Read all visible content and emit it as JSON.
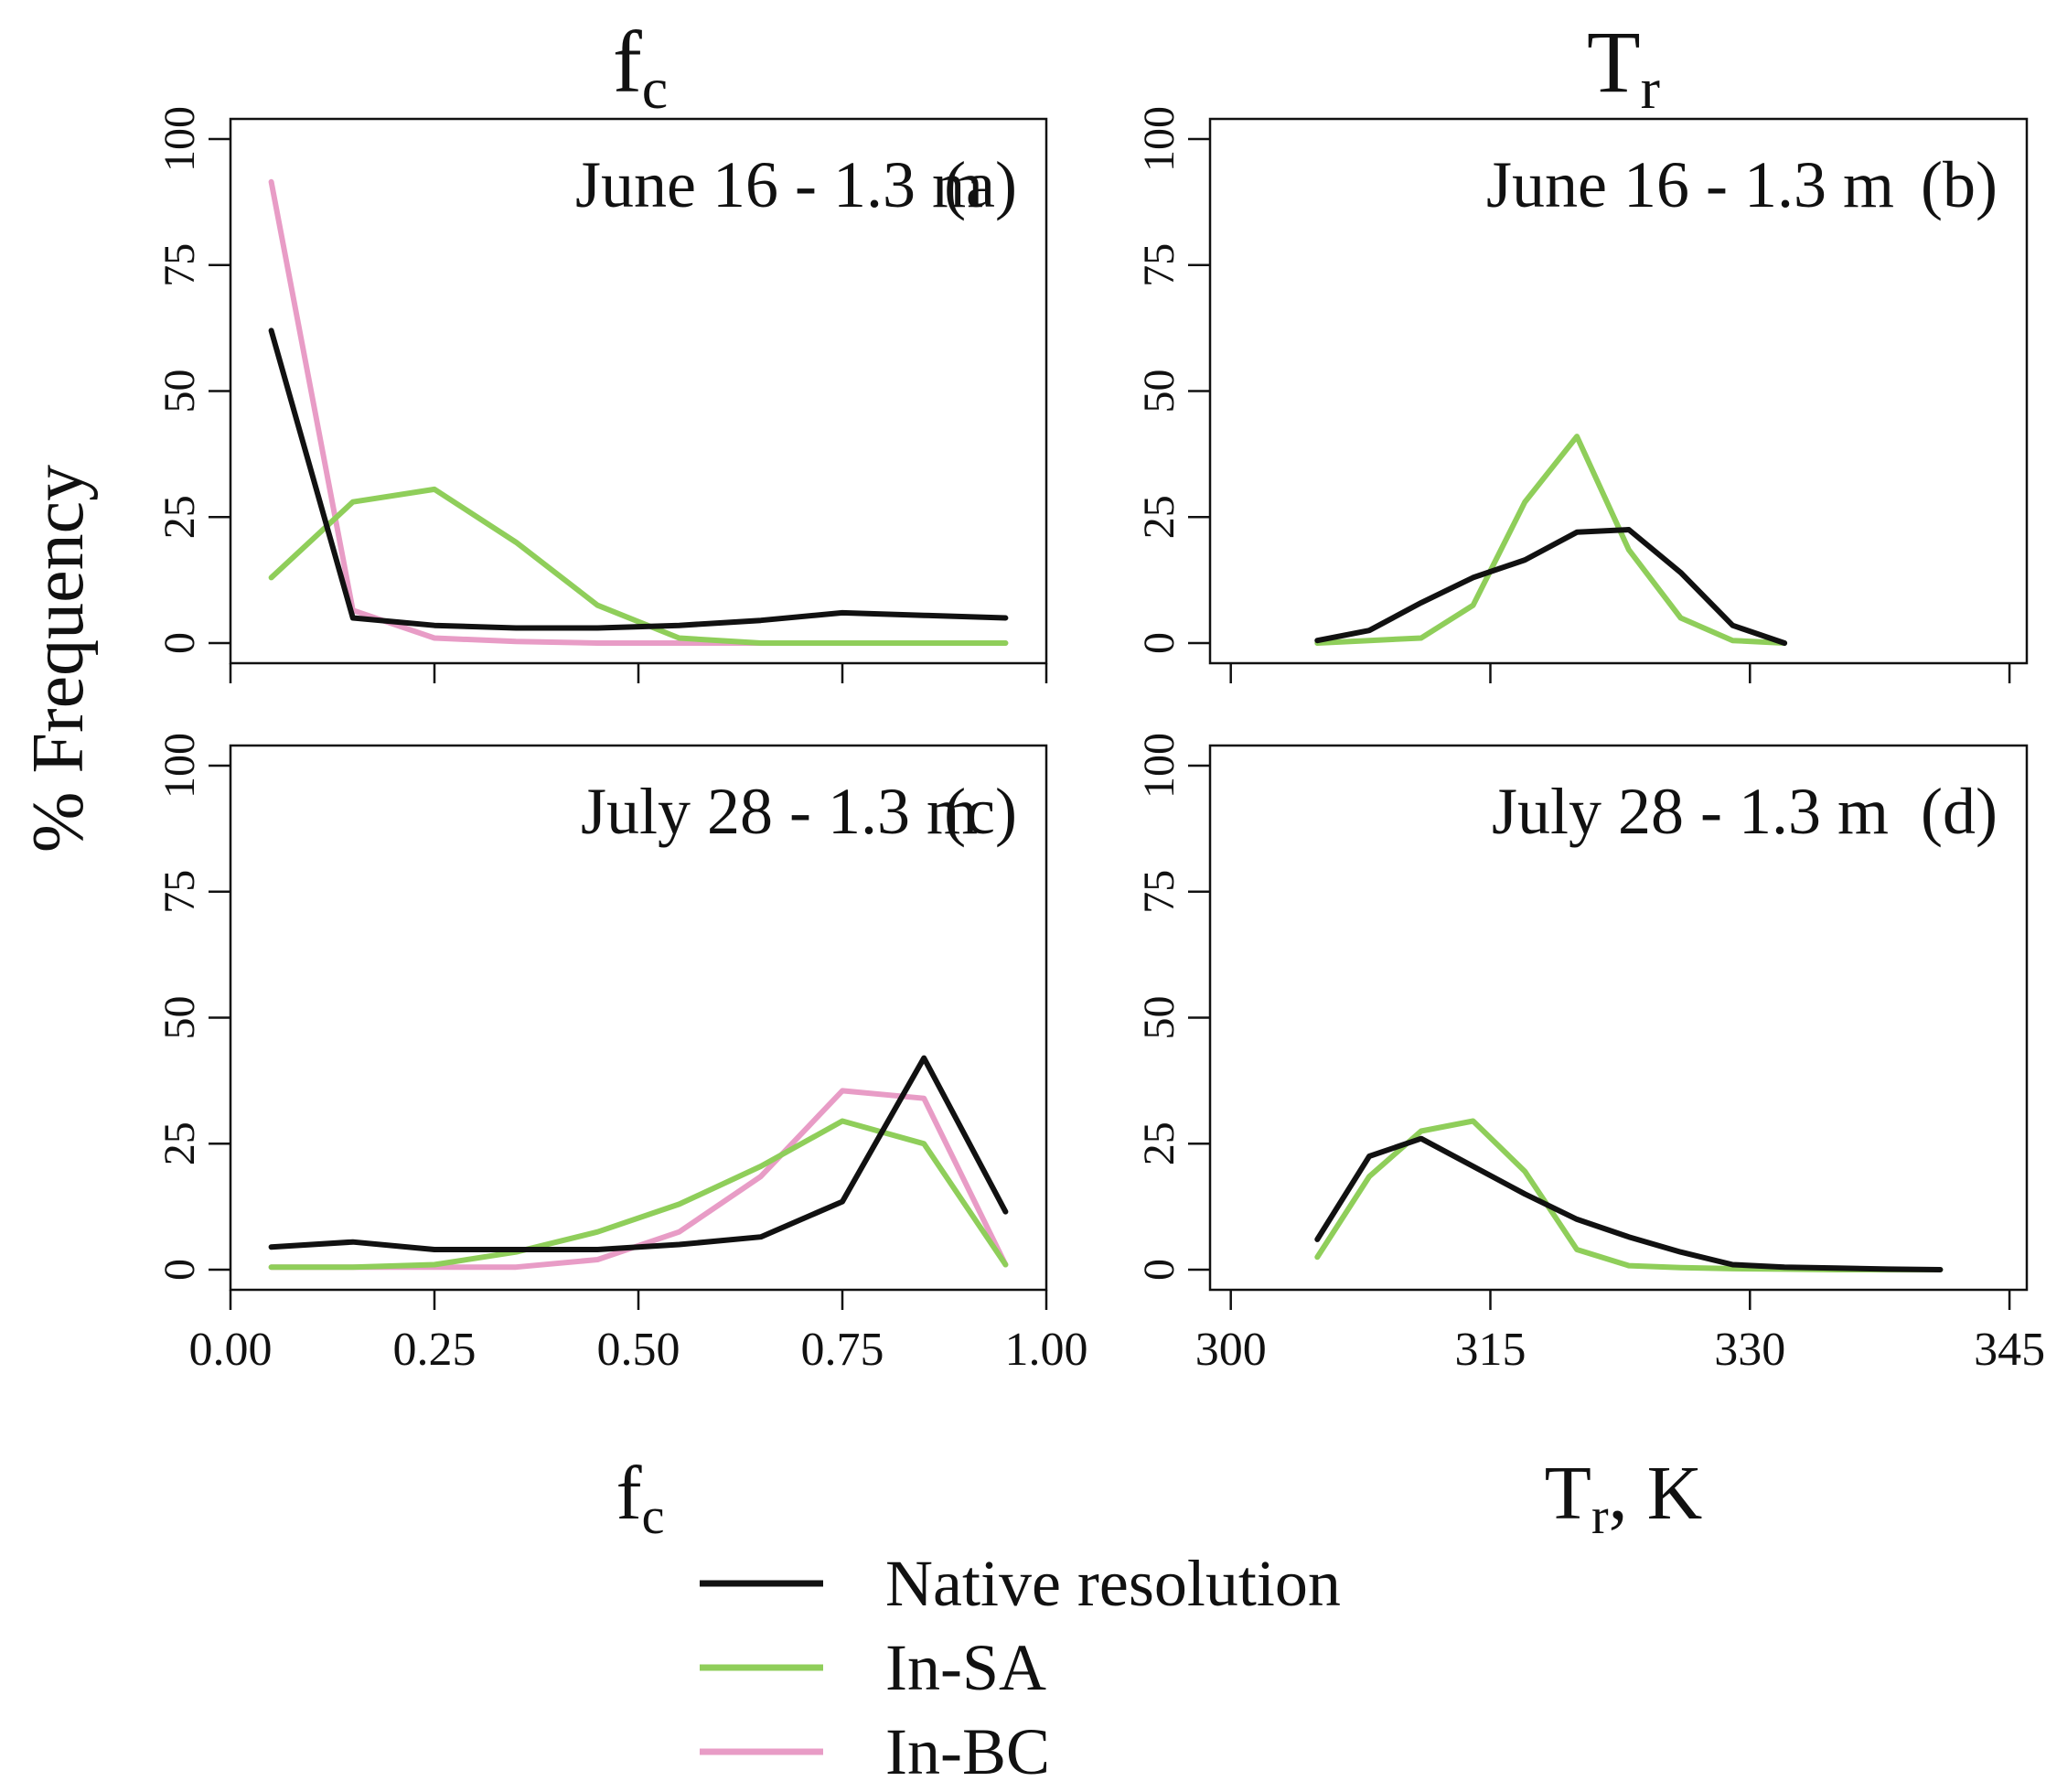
{
  "figure": {
    "column_titles": [
      {
        "main": "f",
        "sub": "c"
      },
      {
        "main": "T",
        "sub": "r"
      }
    ],
    "y_axis_label": "% Frequency",
    "x_axis_labels": [
      {
        "main": "f",
        "sub": "c",
        "suffix": ""
      },
      {
        "main": "T",
        "sub": "r",
        "suffix": ", K"
      }
    ]
  },
  "legend": {
    "placement": "bottom-center",
    "items": [
      {
        "label": "Native resolution",
        "color": "#111111"
      },
      {
        "label": "In-SA",
        "color": "#8fce5a"
      },
      {
        "label": "In-BC",
        "color": "#e89cc6"
      }
    ]
  },
  "colors": {
    "native": "#111111",
    "in_sa": "#8fce5a",
    "in_bc": "#e89cc6"
  },
  "chart_data": [
    {
      "type": "line",
      "panel": "(a)",
      "title": "June 16 - 1.3 m",
      "xlim": [
        0,
        1
      ],
      "ylim": [
        0,
        100
      ],
      "xticks": [
        0.0,
        0.25,
        0.5,
        0.75,
        1.0
      ],
      "xtick_labels": [],
      "yticks": [
        0,
        25,
        50,
        75,
        100
      ],
      "ytick_labels": [
        "0",
        "25",
        "50",
        "75",
        "100"
      ],
      "x": [
        0.05,
        0.15,
        0.25,
        0.35,
        0.45,
        0.55,
        0.65,
        0.75,
        0.85,
        0.95
      ],
      "series": [
        {
          "name": "Native resolution",
          "color": "#111111",
          "values": [
            62,
            5,
            3.5,
            3,
            3,
            3.5,
            4.5,
            6,
            5.5,
            5
          ]
        },
        {
          "name": "In-SA",
          "color": "#8fce5a",
          "values": [
            13,
            28,
            30.5,
            20,
            7.5,
            1,
            0,
            0,
            0,
            0
          ]
        },
        {
          "name": "In-BC",
          "color": "#e89cc6",
          "values": [
            91.5,
            6.5,
            1,
            0.3,
            0,
            0,
            0,
            0,
            0,
            0
          ]
        }
      ]
    },
    {
      "type": "line",
      "panel": "(b)",
      "title": "June 16 - 1.3 m",
      "xlim": [
        298.8,
        346
      ],
      "ylim": [
        0,
        100
      ],
      "xticks": [
        300,
        315,
        330,
        345
      ],
      "xtick_labels": [],
      "yticks": [
        0,
        25,
        50,
        75,
        100
      ],
      "ytick_labels": [
        "0",
        "25",
        "50",
        "75",
        "100"
      ],
      "series": [
        {
          "name": "Native resolution",
          "color": "#111111",
          "x": [
            305,
            308,
            311,
            314,
            317,
            320,
            323,
            326,
            329,
            332
          ],
          "values": [
            0.5,
            2.5,
            8,
            13,
            16.5,
            22,
            22.5,
            14,
            3.5,
            0
          ]
        },
        {
          "name": "In-SA",
          "color": "#8fce5a",
          "x": [
            305,
            308,
            311,
            314,
            317,
            320,
            323,
            326,
            329,
            332
          ],
          "values": [
            0,
            0.5,
            1,
            7.5,
            28,
            41,
            18.5,
            5,
            0.5,
            0
          ]
        }
      ]
    },
    {
      "type": "line",
      "panel": "(c)",
      "title": "July 28 - 1.3 m",
      "xlim": [
        0,
        1
      ],
      "ylim": [
        0,
        100
      ],
      "xticks": [
        0.0,
        0.25,
        0.5,
        0.75,
        1.0
      ],
      "xtick_labels": [
        "0.00",
        "0.25",
        "0.50",
        "0.75",
        "1.00"
      ],
      "yticks": [
        0,
        25,
        50,
        75,
        100
      ],
      "ytick_labels": [
        "0",
        "25",
        "50",
        "75",
        "100"
      ],
      "x": [
        0.05,
        0.15,
        0.25,
        0.35,
        0.45,
        0.55,
        0.65,
        0.75,
        0.85,
        0.95
      ],
      "series": [
        {
          "name": "Native resolution",
          "color": "#111111",
          "values": [
            4.5,
            5.5,
            4,
            4,
            4,
            5,
            6.5,
            13.5,
            42,
            11.5
          ]
        },
        {
          "name": "In-SA",
          "color": "#8fce5a",
          "values": [
            0.5,
            0.5,
            1,
            3.5,
            7.5,
            13,
            20.5,
            29.5,
            25,
            1
          ]
        },
        {
          "name": "In-BC",
          "color": "#e89cc6",
          "values": [
            0.5,
            0.5,
            0.5,
            0.5,
            2,
            7.5,
            18.5,
            35.5,
            34,
            1
          ]
        }
      ]
    },
    {
      "type": "line",
      "panel": "(d)",
      "title": "July 28 - 1.3 m",
      "xlim": [
        298.8,
        346
      ],
      "ylim": [
        0,
        100
      ],
      "xticks": [
        300,
        315,
        330,
        345
      ],
      "xtick_labels": [
        "300",
        "315",
        "330",
        "345"
      ],
      "yticks": [
        0,
        25,
        50,
        75,
        100
      ],
      "ytick_labels": [
        "0",
        "25",
        "50",
        "75",
        "100"
      ],
      "series": [
        {
          "name": "Native resolution",
          "color": "#111111",
          "x": [
            305,
            308,
            311,
            314,
            317,
            320,
            323,
            326,
            329,
            332,
            335,
            338,
            341
          ],
          "values": [
            6,
            22.5,
            26,
            20.5,
            15,
            10,
            6.5,
            3.5,
            1,
            0.5,
            0.3,
            0.1,
            0
          ]
        },
        {
          "name": "In-SA",
          "color": "#8fce5a",
          "x": [
            305,
            308,
            311,
            314,
            317,
            320,
            323,
            326,
            329,
            332,
            335,
            338,
            341
          ],
          "values": [
            2.5,
            18.5,
            27.5,
            29.5,
            19.5,
            4,
            0.8,
            0.4,
            0.2,
            0.1,
            0,
            0,
            0
          ]
        }
      ]
    }
  ]
}
